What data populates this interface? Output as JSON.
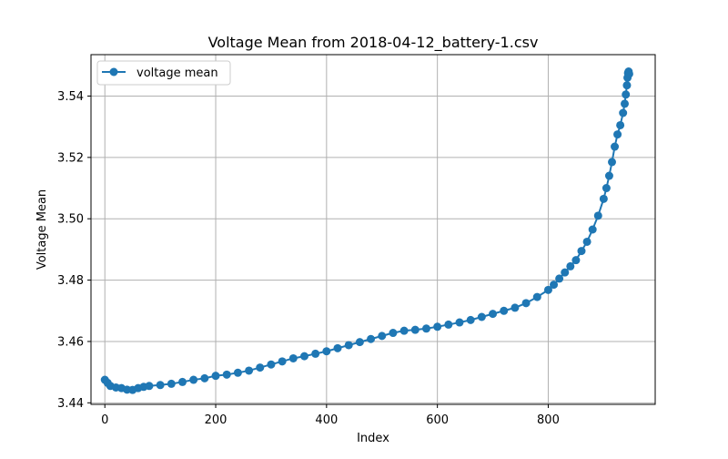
{
  "chart_data": {
    "type": "line",
    "title": "Voltage Mean from 2018-04-12_battery-1.csv",
    "xlabel": "Index",
    "ylabel": "Voltage Mean",
    "xlim": [
      -25,
      993
    ],
    "ylim": [
      3.4395,
      3.5535
    ],
    "xticks": [
      0,
      200,
      400,
      600,
      800
    ],
    "yticks": [
      3.44,
      3.46,
      3.48,
      3.5,
      3.52,
      3.54
    ],
    "xtick_labels": [
      "0",
      "200",
      "400",
      "600",
      "800"
    ],
    "ytick_labels": [
      "3.44",
      "3.46",
      "3.48",
      "3.50",
      "3.52",
      "3.54"
    ],
    "grid": true,
    "legend_position": "upper-left",
    "series": [
      {
        "name": "voltage mean",
        "color": "#1f77b4",
        "marker": "circle",
        "x": [
          0,
          5,
          10,
          20,
          30,
          40,
          50,
          60,
          70,
          80,
          100,
          120,
          140,
          160,
          180,
          200,
          220,
          240,
          260,
          280,
          300,
          320,
          340,
          360,
          380,
          400,
          420,
          440,
          460,
          480,
          500,
          520,
          540,
          560,
          580,
          600,
          620,
          640,
          660,
          680,
          700,
          720,
          740,
          760,
          780,
          800,
          810,
          820,
          830,
          840,
          850,
          860,
          870,
          880,
          890,
          900,
          905,
          910,
          915,
          920,
          925,
          930,
          935,
          938,
          940,
          942,
          943,
          944,
          945,
          946
        ],
        "y": [
          3.4475,
          3.4465,
          3.4455,
          3.445,
          3.4448,
          3.4443,
          3.4442,
          3.4448,
          3.4452,
          3.4455,
          3.4458,
          3.4462,
          3.4468,
          3.4475,
          3.448,
          3.4488,
          3.4492,
          3.4498,
          3.4505,
          3.4515,
          3.4525,
          3.4535,
          3.4545,
          3.4552,
          3.456,
          3.4568,
          3.4578,
          3.4588,
          3.4598,
          3.4608,
          3.4618,
          3.4628,
          3.4635,
          3.4638,
          3.4642,
          3.4648,
          3.4655,
          3.4662,
          3.467,
          3.468,
          3.469,
          3.47,
          3.471,
          3.4725,
          3.4745,
          3.4768,
          3.4785,
          3.4805,
          3.4825,
          3.4845,
          3.4865,
          3.4895,
          3.4925,
          3.4965,
          3.501,
          3.5065,
          3.51,
          3.514,
          3.5185,
          3.5235,
          3.5275,
          3.5305,
          3.5345,
          3.5375,
          3.5405,
          3.5435,
          3.546,
          3.5475,
          3.548,
          3.5472
        ]
      }
    ]
  }
}
